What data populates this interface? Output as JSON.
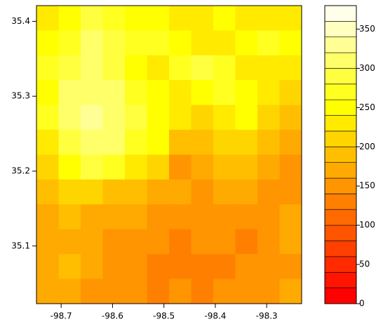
{
  "chart_data": {
    "type": "raster",
    "xlim": [
      -98.748,
      -98.232
    ],
    "ylim": [
      35.023,
      35.421
    ],
    "xticks": [
      -98.7,
      -98.6,
      -98.5,
      -98.4,
      -98.3
    ],
    "yticks": [
      35.1,
      35.2,
      35.3,
      35.4
    ],
    "z": [
      [
        230,
        250,
        280,
        260,
        240,
        250,
        230,
        220,
        240,
        230,
        220,
        230
      ],
      [
        250,
        270,
        300,
        280,
        260,
        260,
        250,
        230,
        220,
        240,
        260,
        240
      ],
      [
        260,
        280,
        300,
        290,
        250,
        230,
        260,
        280,
        260,
        230,
        230,
        220
      ],
      [
        250,
        300,
        310,
        300,
        270,
        240,
        220,
        250,
        270,
        250,
        220,
        200
      ],
      [
        260,
        300,
        320,
        310,
        290,
        250,
        230,
        200,
        230,
        240,
        210,
        190
      ],
      [
        230,
        290,
        300,
        310,
        270,
        240,
        180,
        190,
        200,
        210,
        190,
        170
      ],
      [
        200,
        250,
        280,
        260,
        230,
        200,
        150,
        160,
        180,
        190,
        170,
        150
      ],
      [
        190,
        200,
        210,
        190,
        180,
        170,
        160,
        150,
        160,
        170,
        150,
        150
      ],
      [
        170,
        180,
        170,
        160,
        160,
        150,
        150,
        140,
        150,
        140,
        150,
        160
      ],
      [
        160,
        170,
        160,
        150,
        150,
        140,
        130,
        140,
        140,
        130,
        150,
        160
      ],
      [
        170,
        180,
        160,
        150,
        140,
        130,
        130,
        120,
        130,
        140,
        150,
        150
      ],
      [
        160,
        170,
        150,
        140,
        140,
        130,
        140,
        130,
        140,
        150,
        150,
        160
      ]
    ],
    "colorbar_breaks": [
      0,
      20,
      40,
      60,
      80,
      100,
      120,
      140,
      160,
      180,
      200,
      220,
      240,
      260,
      280,
      300,
      320,
      340,
      360,
      380
    ],
    "colors": [
      "#FF0000",
      "#FF1500",
      "#FF2A00",
      "#FF4000",
      "#FF5500",
      "#FF6A00",
      "#FF8000",
      "#FF9500",
      "#FFAA00",
      "#FFBF00",
      "#FFD500",
      "#FFEA00",
      "#FFFF00",
      "#FFFF20",
      "#FFFF40",
      "#FFFF6A",
      "#FFFF95",
      "#FFFFBF",
      "#FFFFEA"
    ],
    "colorbar_ticks": [
      0,
      50,
      100,
      150,
      200,
      250,
      300,
      350
    ]
  }
}
